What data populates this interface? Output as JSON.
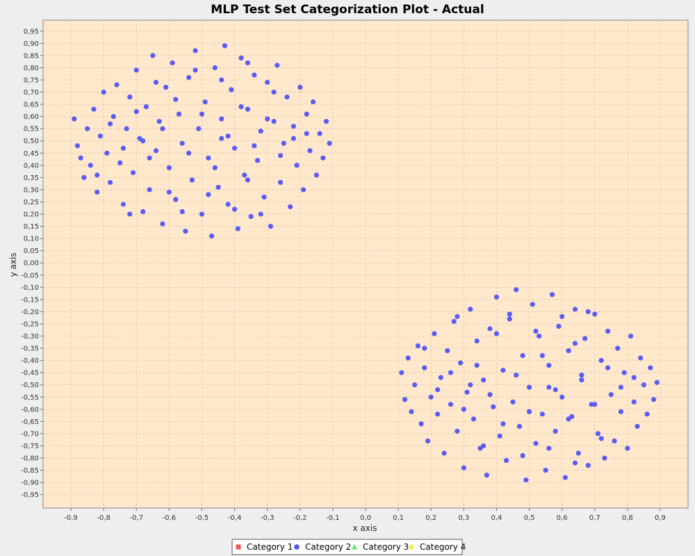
{
  "chart_data": {
    "type": "scatter",
    "title": "MLP Test Set Categorization Plot - Actual",
    "xlabel": "x axis",
    "ylabel": "y axis",
    "xlim": [
      -0.985,
      0.985
    ],
    "ylim": [
      -1.005,
      0.995
    ],
    "x_ticks": [
      "-0,9",
      "-0,8",
      "-0,7",
      "-0,6",
      "-0,5",
      "-0,4",
      "-0,3",
      "-0,2",
      "-0,1",
      "0,0",
      "0,1",
      "0,2",
      "0,3",
      "0,4",
      "0,5",
      "0,6",
      "0,7",
      "0,8",
      "0,9"
    ],
    "y_ticks": [
      "0,95",
      "0,90",
      "0,85",
      "0,80",
      "0,75",
      "0,70",
      "0,65",
      "0,60",
      "0,55",
      "0,50",
      "0,45",
      "0,40",
      "0,35",
      "0,30",
      "0,25",
      "0,20",
      "0,15",
      "0,10",
      "0,05",
      "0,00",
      "-0,05",
      "-0,10",
      "-0,15",
      "-0,20",
      "-0,25",
      "-0,30",
      "-0,35",
      "-0,40",
      "-0,45",
      "-0,50",
      "-0,55",
      "-0,60",
      "-0,65",
      "-0,70",
      "-0,75",
      "-0,80",
      "-0,85",
      "-0,90",
      "-0,95"
    ],
    "grid": true,
    "legend_position": "bottom",
    "legend": [
      {
        "label": "Category 1",
        "color": "#ee5555",
        "marker": "square"
      },
      {
        "label": "Category 2",
        "color": "#5555ee",
        "marker": "circle"
      },
      {
        "label": "Category 3",
        "color": "#55ee55",
        "marker": "triangle"
      },
      {
        "label": "Category 4",
        "color": "#eeee55",
        "marker": "diamond"
      }
    ],
    "series": [
      {
        "name": "Category 2",
        "color": "#5b5bf5",
        "points": [
          [
            -0.89,
            0.59
          ],
          [
            -0.88,
            0.48
          ],
          [
            -0.87,
            0.43
          ],
          [
            -0.86,
            0.35
          ],
          [
            -0.85,
            0.55
          ],
          [
            -0.84,
            0.4
          ],
          [
            -0.83,
            0.63
          ],
          [
            -0.82,
            0.29
          ],
          [
            -0.81,
            0.52
          ],
          [
            -0.8,
            0.7
          ],
          [
            -0.79,
            0.45
          ],
          [
            -0.78,
            0.33
          ],
          [
            -0.77,
            0.6
          ],
          [
            -0.76,
            0.73
          ],
          [
            -0.75,
            0.41
          ],
          [
            -0.74,
            0.24
          ],
          [
            -0.73,
            0.55
          ],
          [
            -0.72,
            0.68
          ],
          [
            -0.71,
            0.37
          ],
          [
            -0.7,
            0.79
          ],
          [
            -0.69,
            0.51
          ],
          [
            -0.68,
            0.21
          ],
          [
            -0.67,
            0.64
          ],
          [
            -0.66,
            0.3
          ],
          [
            -0.65,
            0.85
          ],
          [
            -0.64,
            0.46
          ],
          [
            -0.63,
            0.58
          ],
          [
            -0.62,
            0.16
          ],
          [
            -0.61,
            0.72
          ],
          [
            -0.6,
            0.39
          ],
          [
            -0.59,
            0.82
          ],
          [
            -0.58,
            0.26
          ],
          [
            -0.57,
            0.61
          ],
          [
            -0.56,
            0.49
          ],
          [
            -0.55,
            0.13
          ],
          [
            -0.54,
            0.76
          ],
          [
            -0.53,
            0.34
          ],
          [
            -0.52,
            0.87
          ],
          [
            -0.51,
            0.55
          ],
          [
            -0.5,
            0.2
          ],
          [
            -0.49,
            0.66
          ],
          [
            -0.48,
            0.43
          ],
          [
            -0.47,
            0.11
          ],
          [
            -0.46,
            0.8
          ],
          [
            -0.45,
            0.31
          ],
          [
            -0.44,
            0.59
          ],
          [
            -0.43,
            0.89
          ],
          [
            -0.42,
            0.24
          ],
          [
            -0.41,
            0.71
          ],
          [
            -0.4,
            0.47
          ],
          [
            -0.39,
            0.14
          ],
          [
            -0.38,
            0.84
          ],
          [
            -0.37,
            0.36
          ],
          [
            -0.36,
            0.63
          ],
          [
            -0.35,
            0.19
          ],
          [
            -0.34,
            0.77
          ],
          [
            -0.33,
            0.42
          ],
          [
            -0.32,
            0.54
          ],
          [
            -0.31,
            0.27
          ],
          [
            -0.3,
            0.74
          ],
          [
            -0.29,
            0.15
          ],
          [
            -0.28,
            0.58
          ],
          [
            -0.27,
            0.81
          ],
          [
            -0.26,
            0.33
          ],
          [
            -0.25,
            0.49
          ],
          [
            -0.24,
            0.68
          ],
          [
            -0.23,
            0.23
          ],
          [
            -0.22,
            0.56
          ],
          [
            -0.21,
            0.4
          ],
          [
            -0.2,
            0.72
          ],
          [
            -0.19,
            0.3
          ],
          [
            -0.18,
            0.61
          ],
          [
            -0.17,
            0.46
          ],
          [
            -0.16,
            0.66
          ],
          [
            -0.15,
            0.36
          ],
          [
            -0.14,
            0.53
          ],
          [
            -0.13,
            0.43
          ],
          [
            -0.12,
            0.58
          ],
          [
            -0.11,
            0.49
          ],
          [
            -0.82,
            0.36
          ],
          [
            -0.78,
            0.57
          ],
          [
            -0.74,
            0.47
          ],
          [
            -0.7,
            0.62
          ],
          [
            -0.66,
            0.43
          ],
          [
            -0.62,
            0.55
          ],
          [
            -0.58,
            0.67
          ],
          [
            -0.54,
            0.45
          ],
          [
            -0.5,
            0.61
          ],
          [
            -0.46,
            0.39
          ],
          [
            -0.42,
            0.52
          ],
          [
            -0.38,
            0.64
          ],
          [
            -0.34,
            0.48
          ],
          [
            -0.3,
            0.59
          ],
          [
            -0.26,
            0.44
          ],
          [
            -0.22,
            0.51
          ],
          [
            -0.18,
            0.53
          ],
          [
            -0.6,
            0.29
          ],
          [
            -0.56,
            0.21
          ],
          [
            -0.48,
            0.28
          ],
          [
            -0.4,
            0.22
          ],
          [
            -0.32,
            0.2
          ],
          [
            -0.64,
            0.74
          ],
          [
            -0.52,
            0.79
          ],
          [
            -0.44,
            0.75
          ],
          [
            -0.36,
            0.82
          ],
          [
            -0.28,
            0.7
          ],
          [
            -0.72,
            0.2
          ],
          [
            -0.68,
            0.5
          ],
          [
            -0.44,
            0.51
          ],
          [
            -0.36,
            0.34
          ]
        ]
      },
      {
        "name": "Category 2",
        "color": "#5b5bf5",
        "points": [
          [
            0.11,
            -0.45
          ],
          [
            0.12,
            -0.56
          ],
          [
            0.13,
            -0.39
          ],
          [
            0.14,
            -0.61
          ],
          [
            0.15,
            -0.5
          ],
          [
            0.16,
            -0.34
          ],
          [
            0.17,
            -0.66
          ],
          [
            0.18,
            -0.43
          ],
          [
            0.19,
            -0.73
          ],
          [
            0.2,
            -0.55
          ],
          [
            0.21,
            -0.29
          ],
          [
            0.22,
            -0.62
          ],
          [
            0.23,
            -0.47
          ],
          [
            0.24,
            -0.78
          ],
          [
            0.25,
            -0.36
          ],
          [
            0.26,
            -0.58
          ],
          [
            0.27,
            -0.24
          ],
          [
            0.28,
            -0.69
          ],
          [
            0.29,
            -0.41
          ],
          [
            0.3,
            -0.84
          ],
          [
            0.31,
            -0.53
          ],
          [
            0.32,
            -0.19
          ],
          [
            0.33,
            -0.64
          ],
          [
            0.34,
            -0.32
          ],
          [
            0.35,
            -0.76
          ],
          [
            0.36,
            -0.48
          ],
          [
            0.37,
            -0.87
          ],
          [
            0.38,
            -0.27
          ],
          [
            0.39,
            -0.59
          ],
          [
            0.4,
            -0.14
          ],
          [
            0.41,
            -0.71
          ],
          [
            0.42,
            -0.44
          ],
          [
            0.43,
            -0.81
          ],
          [
            0.44,
            -0.23
          ],
          [
            0.45,
            -0.57
          ],
          [
            0.46,
            -0.11
          ],
          [
            0.47,
            -0.67
          ],
          [
            0.48,
            -0.38
          ],
          [
            0.49,
            -0.89
          ],
          [
            0.5,
            -0.51
          ],
          [
            0.51,
            -0.17
          ],
          [
            0.52,
            -0.74
          ],
          [
            0.53,
            -0.3
          ],
          [
            0.54,
            -0.62
          ],
          [
            0.55,
            -0.85
          ],
          [
            0.56,
            -0.42
          ],
          [
            0.57,
            -0.13
          ],
          [
            0.58,
            -0.69
          ],
          [
            0.59,
            -0.26
          ],
          [
            0.6,
            -0.55
          ],
          [
            0.61,
            -0.88
          ],
          [
            0.62,
            -0.36
          ],
          [
            0.63,
            -0.63
          ],
          [
            0.64,
            -0.19
          ],
          [
            0.65,
            -0.78
          ],
          [
            0.66,
            -0.46
          ],
          [
            0.67,
            -0.31
          ],
          [
            0.68,
            -0.83
          ],
          [
            0.69,
            -0.58
          ],
          [
            0.7,
            -0.21
          ],
          [
            0.71,
            -0.7
          ],
          [
            0.72,
            -0.4
          ],
          [
            0.73,
            -0.8
          ],
          [
            0.74,
            -0.28
          ],
          [
            0.75,
            -0.54
          ],
          [
            0.76,
            -0.73
          ],
          [
            0.77,
            -0.35
          ],
          [
            0.78,
            -0.61
          ],
          [
            0.79,
            -0.45
          ],
          [
            0.8,
            -0.76
          ],
          [
            0.81,
            -0.3
          ],
          [
            0.82,
            -0.57
          ],
          [
            0.83,
            -0.67
          ],
          [
            0.84,
            -0.39
          ],
          [
            0.85,
            -0.5
          ],
          [
            0.86,
            -0.62
          ],
          [
            0.87,
            -0.43
          ],
          [
            0.88,
            -0.56
          ],
          [
            0.89,
            -0.49
          ],
          [
            0.18,
            -0.35
          ],
          [
            0.22,
            -0.52
          ],
          [
            0.26,
            -0.45
          ],
          [
            0.3,
            -0.6
          ],
          [
            0.34,
            -0.42
          ],
          [
            0.38,
            -0.54
          ],
          [
            0.42,
            -0.66
          ],
          [
            0.46,
            -0.46
          ],
          [
            0.5,
            -0.61
          ],
          [
            0.54,
            -0.38
          ],
          [
            0.58,
            -0.52
          ],
          [
            0.62,
            -0.64
          ],
          [
            0.66,
            -0.48
          ],
          [
            0.7,
            -0.58
          ],
          [
            0.74,
            -0.43
          ],
          [
            0.78,
            -0.51
          ],
          [
            0.82,
            -0.47
          ],
          [
            0.4,
            -0.29
          ],
          [
            0.44,
            -0.21
          ],
          [
            0.52,
            -0.28
          ],
          [
            0.6,
            -0.22
          ],
          [
            0.68,
            -0.2
          ],
          [
            0.36,
            -0.75
          ],
          [
            0.48,
            -0.79
          ],
          [
            0.56,
            -0.76
          ],
          [
            0.64,
            -0.82
          ],
          [
            0.72,
            -0.72
          ],
          [
            0.28,
            -0.22
          ],
          [
            0.32,
            -0.5
          ],
          [
            0.56,
            -0.51
          ],
          [
            0.64,
            -0.33
          ]
        ]
      }
    ]
  }
}
